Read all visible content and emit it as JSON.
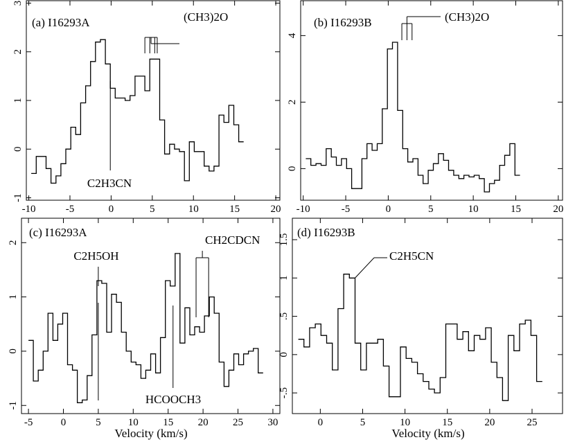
{
  "chart_data": [
    {
      "type": "line",
      "panel_label": "(a) I16293A",
      "xlabel": "",
      "ylabel": "",
      "xlim": [
        -10.3,
        20.5
      ],
      "ylim": [
        -1.05,
        3.05
      ],
      "xticks": [
        -10,
        -5,
        0,
        5,
        10,
        15,
        20
      ],
      "yticks": [
        -1,
        0,
        1,
        2,
        3
      ],
      "step_x0": -9.7,
      "step_dx": 0.6,
      "series": [
        {
          "values": [
            -0.5,
            -0.15,
            -0.15,
            -0.4,
            -0.7,
            -0.55,
            -0.3,
            0,
            0.45,
            0.3,
            0.95,
            1.3,
            1.8,
            2.2,
            2.25,
            1.75,
            1.25,
            1.05,
            1.05,
            1.0,
            1.1,
            1.5,
            1.5,
            1.2,
            1.85,
            1.85,
            0.6,
            -0.1,
            0.1,
            0,
            -0.05,
            -0.65,
            0.15,
            -0.05,
            -0.05,
            -0.35,
            -0.45,
            -0.35,
            0.7,
            0.55,
            0.9,
            0.5,
            0.15
          ]
        }
      ],
      "annotations": [
        {
          "text": "(CH3)2O",
          "kind": "comb",
          "x": [
            4.1,
            4.7,
            5.3,
            5.6
          ]
        },
        {
          "text": "C2H3CN",
          "kind": "line",
          "x": -0.1
        }
      ]
    },
    {
      "type": "line",
      "panel_label": "(b) I16293B",
      "xlabel": "",
      "ylabel": "",
      "xlim": [
        -10.3,
        20.5
      ],
      "ylim": [
        -0.95,
        5.05
      ],
      "xticks": [
        -10,
        -5,
        0,
        5,
        10,
        15,
        20
      ],
      "yticks": [
        0,
        2,
        4
      ],
      "step_x0": -9.7,
      "step_dx": 0.6,
      "series": [
        {
          "values": [
            0.3,
            0.1,
            0.15,
            0.1,
            0.6,
            0.35,
            0.1,
            0.3,
            0,
            -0.6,
            -0.6,
            0.3,
            0.75,
            0.55,
            0.75,
            1.8,
            3.6,
            3.8,
            1.75,
            0.6,
            0.2,
            0.3,
            -0.2,
            -0.45,
            -0.05,
            0.15,
            0.45,
            0.25,
            -0.05,
            -0.2,
            -0.3,
            -0.2,
            -0.25,
            -0.2,
            -0.3,
            -0.7,
            -0.45,
            -0.35,
            0.1,
            0.4,
            0.75,
            -0.2
          ]
        }
      ],
      "annotations": [
        {
          "text": "(CH3)2O",
          "kind": "comb",
          "x": [
            1.6,
            2.2,
            2.8
          ]
        }
      ]
    },
    {
      "type": "line",
      "panel_label": "(c) I16293A",
      "xlabel": "Velocity (km/s)",
      "ylabel": "",
      "xlim": [
        -6.0,
        31.0
      ],
      "ylim": [
        -1.15,
        2.45
      ],
      "xticks": [
        -5,
        0,
        5,
        10,
        15,
        20,
        25,
        30
      ],
      "yticks": [
        -1,
        0,
        1,
        2
      ],
      "step_x0": -5.0,
      "step_dx": 0.7,
      "series": [
        {
          "values": [
            0.2,
            -0.55,
            -0.35,
            0,
            0.7,
            0.2,
            0.5,
            0.7,
            -0.25,
            -0.35,
            -0.95,
            -0.9,
            -0.45,
            0.3,
            1.3,
            1.25,
            0.35,
            1.05,
            0.9,
            0.35,
            0,
            -0.2,
            -0.25,
            -0.5,
            -0.35,
            -0.05,
            -0.4,
            0.25,
            1.3,
            1.2,
            1.8,
            0.15,
            0.8,
            0.3,
            0.45,
            0.35,
            0.65,
            1.0,
            0.7,
            -0.2,
            -0.65,
            -0.35,
            -0.05,
            -0.25,
            -0.05,
            0,
            0.05,
            -0.4
          ]
        }
      ],
      "annotations": [
        {
          "text": "C2H5OH",
          "kind": "line",
          "x": 5.0
        },
        {
          "text": "HCOOCH3",
          "kind": "line",
          "x": 15.7
        },
        {
          "text": "CH2CDCN",
          "kind": "comb",
          "x": [
            19.0,
            20.8
          ]
        }
      ]
    },
    {
      "type": "line",
      "panel_label": "(d) I16293B",
      "xlabel": "Velocity (km/s)",
      "ylabel": "",
      "xlim": [
        -3.3,
        28.6
      ],
      "ylim": [
        -0.77,
        1.78
      ],
      "xticks": [
        0,
        5,
        10,
        15,
        20,
        25
      ],
      "yticks": [
        -0.5,
        0,
        0.5,
        1,
        1.5
      ],
      "step_x0": -2.6,
      "step_dx": 0.67,
      "series": [
        {
          "values": [
            0.2,
            0.1,
            0.35,
            0.4,
            0.25,
            0.15,
            -0.2,
            0.6,
            1.05,
            1.0,
            0.15,
            -0.2,
            0.15,
            0.15,
            0.2,
            -0.15,
            -0.55,
            -0.55,
            0.1,
            -0.05,
            -0.1,
            -0.25,
            -0.35,
            -0.45,
            -0.5,
            -0.3,
            0.4,
            0.4,
            0.2,
            0.3,
            0.05,
            0.25,
            0.2,
            0.35,
            -0.1,
            -0.3,
            -0.6,
            0.25,
            0.05,
            0.4,
            0.45,
            0.25,
            -0.35
          ]
        }
      ],
      "annotations": [
        {
          "text": "C2H5CN",
          "kind": "pointer",
          "x": 4.1,
          "y": 1.0
        }
      ]
    }
  ]
}
